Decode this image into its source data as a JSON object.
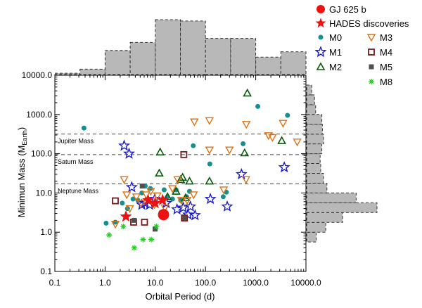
{
  "chart_data": {
    "type": "scatter",
    "xlabel": "Orbital Period (d)",
    "ylabel": "Minimun Mass (M",
    "ylabel_sub": "Earth",
    "ylabel_close": ")",
    "xscale": "log",
    "yscale": "log",
    "xlim": [
      0.1,
      10000
    ],
    "ylim": [
      0.1,
      10000
    ],
    "xticks": [
      "0.1",
      "1.0",
      "10.0",
      "100.0",
      "1000.0",
      "10000.0"
    ],
    "yticks": [
      "0.1",
      "1.0",
      "10.0",
      "100.0",
      "1000.0",
      "10000.0"
    ],
    "grid": false,
    "legend_position": "top-right, outside plot",
    "reference_lines": [
      {
        "label": "Jupiter Mass",
        "y": 318
      },
      {
        "label": "Saturn Mass",
        "y": 95
      },
      {
        "label": "Neptune Mass",
        "y": 17
      }
    ],
    "series": [
      {
        "name": "GJ 625 b",
        "marker": "big-dot",
        "color": "#ee1111",
        "points": [
          [
            14.6,
            2.8
          ]
        ]
      },
      {
        "name": "HADES discoveries",
        "marker": "filled-star",
        "color": "#ee1111",
        "points": [
          [
            2.6,
            2.5
          ],
          [
            7.2,
            6.5
          ],
          [
            9.9,
            5.5
          ],
          [
            14.0,
            6.6
          ]
        ]
      },
      {
        "name": "M0",
        "marker": "dot",
        "color": "#159090",
        "points": [
          [
            0.38,
            450
          ],
          [
            1.05,
            1.7
          ],
          [
            1.6,
            1.8
          ],
          [
            2.2,
            5.5
          ],
          [
            2.8,
            4.0
          ],
          [
            3.6,
            7.0
          ],
          [
            4.5,
            6.5
          ],
          [
            5.4,
            10.0
          ],
          [
            6.3,
            15.0
          ],
          [
            8.0,
            13.0
          ],
          [
            9.2,
            5.5
          ],
          [
            13.0,
            3.2
          ],
          [
            15.0,
            12.0
          ],
          [
            17.5,
            8.0
          ],
          [
            22.0,
            7.0
          ],
          [
            26.0,
            12.0
          ],
          [
            32.0,
            6.5
          ],
          [
            42.0,
            8.0
          ],
          [
            48.0,
            11.0
          ],
          [
            57.0,
            160
          ],
          [
            122.0,
            55.0
          ],
          [
            225.0,
            8.0
          ],
          [
            260.0,
            10.5
          ],
          [
            560.0,
            180
          ],
          [
            1100.0,
            1600
          ],
          [
            4300.0,
            950
          ]
        ]
      },
      {
        "name": "M1",
        "marker": "open-star",
        "color": "#1a1acc",
        "points": [
          [
            2.4,
            160
          ],
          [
            3.0,
            100
          ],
          [
            3.4,
            14.0
          ],
          [
            5.4,
            5.0
          ],
          [
            6.3,
            5.5
          ],
          [
            7.7,
            5.0
          ],
          [
            9.8,
            7.0
          ],
          [
            16.5,
            5.5
          ],
          [
            27.0,
            3.8
          ],
          [
            36.0,
            4.2
          ],
          [
            45.0,
            2.8
          ],
          [
            50.0,
            4.5
          ],
          [
            62.0,
            2.7
          ],
          [
            125.0,
            7.0
          ],
          [
            270.0,
            4.5
          ],
          [
            520.0,
            30.0
          ],
          [
            3700.0,
            45.0
          ]
        ]
      },
      {
        "name": "M2",
        "marker": "open-triangle",
        "color": "#0a5a0a",
        "points": [
          [
            12.5,
            110
          ],
          [
            12.0,
            32
          ],
          [
            17.5,
            8.0
          ],
          [
            26.0,
            11.0
          ],
          [
            32.0,
            22.0
          ],
          [
            35.0,
            25.0
          ],
          [
            40.0,
            7.5
          ],
          [
            48.0,
            20.0
          ],
          [
            120.0,
            20.0
          ],
          [
            600.0,
            105
          ],
          [
            680.0,
            3500
          ],
          [
            3300.0,
            215
          ]
        ]
      },
      {
        "name": "M3",
        "marker": "open-triangle-down",
        "color": "#e07010",
        "points": [
          [
            1.6,
            1.6
          ],
          [
            2.4,
            22.0
          ],
          [
            2.7,
            9.0
          ],
          [
            3.1,
            4.0
          ],
          [
            4.2,
            8.0
          ],
          [
            5.2,
            5.5
          ],
          [
            6.6,
            9.0
          ],
          [
            8.1,
            11.0
          ],
          [
            9.6,
            5.0
          ],
          [
            11.0,
            8.5
          ],
          [
            15.5,
            4.2
          ],
          [
            22.0,
            13.0
          ],
          [
            28.0,
            22.0
          ],
          [
            33.0,
            6.5
          ],
          [
            43.0,
            6.5
          ],
          [
            58.0,
            9.0
          ],
          [
            60.0,
            650
          ],
          [
            120.0,
            700
          ],
          [
            120.0,
            125
          ],
          [
            230.0,
            12.0
          ],
          [
            300.0,
            125
          ],
          [
            640.0,
            22.0
          ],
          [
            650.0,
            560
          ],
          [
            1800.0,
            290
          ],
          [
            2150.0,
            260
          ],
          [
            3500.0,
            600
          ],
          [
            6700.0,
            200
          ]
        ]
      },
      {
        "name": "M4",
        "marker": "open-square",
        "color": "#7a1616",
        "points": [
          [
            1.6,
            6.3
          ],
          [
            3.7,
            1.8
          ],
          [
            6.1,
            1.8
          ],
          [
            37.0,
            95.0
          ],
          [
            38.0,
            2.3
          ]
        ]
      },
      {
        "name": "M5",
        "marker": "filled-square",
        "color": "#505050",
        "points": [
          [
            3.8,
            2.0
          ],
          [
            5.5,
            15.0
          ],
          [
            9.9,
            1.2
          ],
          [
            38.0,
            2.3
          ]
        ]
      },
      {
        "name": "M8",
        "marker": "asterisk",
        "color": "#22cc22",
        "points": [
          [
            1.2,
            0.85
          ],
          [
            2.3,
            1.4
          ],
          [
            3.8,
            0.4
          ],
          [
            5.7,
            0.65
          ],
          [
            8.3,
            0.65
          ],
          [
            10.5,
            1.4
          ]
        ]
      }
    ],
    "histograms": {
      "top": {
        "axis": "log Orbital Period",
        "bins": [
          [
            -1.0,
            -0.5,
            1
          ],
          [
            -0.5,
            0.0,
            4
          ],
          [
            0.0,
            0.5,
            18
          ],
          [
            0.5,
            1.0,
            24
          ],
          [
            1.0,
            1.5,
            41
          ],
          [
            1.5,
            2.0,
            40
          ],
          [
            2.0,
            2.5,
            27
          ],
          [
            2.5,
            3.0,
            27
          ],
          [
            3.0,
            3.5,
            13
          ],
          [
            3.5,
            4.0,
            17
          ]
        ]
      },
      "right": {
        "axis": "log Minimum Mass",
        "bins": [
          [
            -0.25,
            0.0,
            1.7
          ],
          [
            0.0,
            0.25,
            3.4
          ],
          [
            0.25,
            0.5,
            6.4
          ],
          [
            0.5,
            0.75,
            12.5
          ],
          [
            0.75,
            1.0,
            8.8
          ],
          [
            1.0,
            1.25,
            3.6
          ],
          [
            1.25,
            1.5,
            3.0
          ],
          [
            1.5,
            1.75,
            2.5
          ],
          [
            1.75,
            2.0,
            2.4
          ],
          [
            2.0,
            2.25,
            2.7
          ],
          [
            2.25,
            2.5,
            3.0
          ],
          [
            2.5,
            2.75,
            2.8
          ],
          [
            2.75,
            3.0,
            2.7
          ],
          [
            3.0,
            3.25,
            1.6
          ],
          [
            3.25,
            3.5,
            1.4
          ],
          [
            3.5,
            3.75,
            0.9
          ]
        ]
      }
    }
  }
}
